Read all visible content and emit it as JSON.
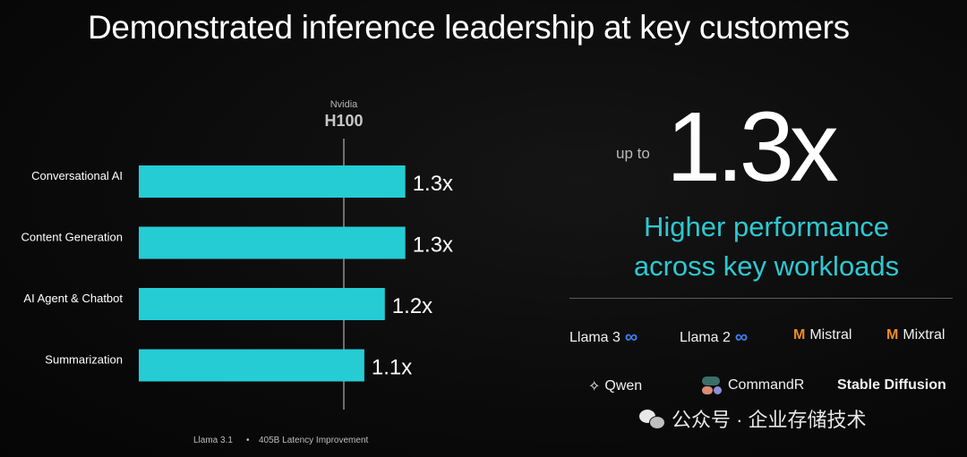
{
  "title": "Demonstrated inference leadership at key customers",
  "chart_data": {
    "type": "bar",
    "orientation": "horizontal",
    "categories": [
      "Conversational AI",
      "Content Generation",
      "AI Agent & Chatbot",
      "Summarization"
    ],
    "values": [
      1.3,
      1.3,
      1.2,
      1.1
    ],
    "value_labels": [
      "1.3x",
      "1.3x",
      "1.2x",
      "1.1x"
    ],
    "reference": {
      "label_small": "Nvidia",
      "label_big": "H100",
      "value": 1.0
    },
    "footnote_model": "Llama 3.1",
    "footnote_bullet": "•",
    "footnote_metric": "405B Latency Improvement",
    "bar_color": "#25ccd4"
  },
  "highlight": {
    "prefix": "up to",
    "value": "1.3x",
    "line1": "Higher performance",
    "line2": "across key workloads",
    "color": "#2ec8d2"
  },
  "models": [
    {
      "name": "Llama 3",
      "icon": "meta-infinity-icon",
      "glyph": "∞"
    },
    {
      "name": "Llama 2",
      "icon": "meta-infinity-icon",
      "glyph": "∞"
    },
    {
      "name": "Mistral",
      "icon": "mistral-m-icon",
      "glyph": "M"
    },
    {
      "name": "Mixtral",
      "icon": "mistral-m-icon",
      "glyph": "M"
    },
    {
      "name": "Qwen",
      "icon": "qwen-icon",
      "glyph": "✧"
    },
    {
      "name": "CommandR",
      "icon": "commandr-icon"
    },
    {
      "name": "Stable Diffusion"
    }
  ],
  "watermark": {
    "text": "公众号 · 企业存储技术",
    "icon": "wechat-icon"
  }
}
